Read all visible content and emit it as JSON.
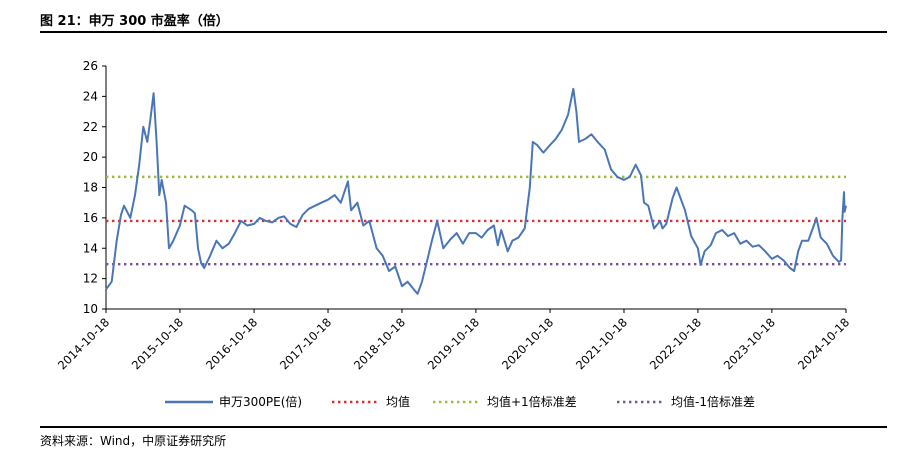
{
  "title": "图 21：申万 300 市盈率（倍）",
  "source": "资料来源：Wind，中原证券研究所",
  "chart_data": {
    "type": "line",
    "title": "图 21：申万 300 市盈率（倍）",
    "xlabel": "",
    "ylabel": "",
    "ylim": [
      10,
      26
    ],
    "yticks": [
      10,
      12,
      14,
      16,
      18,
      20,
      22,
      24,
      26
    ],
    "xlim": [
      "2014-10-18",
      "2024-10-18"
    ],
    "xticks": [
      "2014-10-18",
      "2015-10-18",
      "2016-10-18",
      "2017-10-18",
      "2018-10-18",
      "2019-10-18",
      "2020-10-18",
      "2021-10-18",
      "2022-10-18",
      "2023-10-18",
      "2024-10-18"
    ],
    "grid": false,
    "legend_position": "bottom",
    "series": [
      {
        "name": "申万300PE(倍)",
        "color": "#4a76b8",
        "style": "solid",
        "points": [
          [
            "2014-10-18",
            11.3
          ],
          [
            "2014-11-15",
            11.8
          ],
          [
            "2014-12-10",
            14.5
          ],
          [
            "2014-12-31",
            16.2
          ],
          [
            "2015-01-15",
            16.8
          ],
          [
            "2015-02-15",
            16.0
          ],
          [
            "2015-03-10",
            17.5
          ],
          [
            "2015-03-31",
            19.5
          ],
          [
            "2015-04-20",
            22.0
          ],
          [
            "2015-05-10",
            21.0
          ],
          [
            "2015-05-25",
            22.5
          ],
          [
            "2015-06-10",
            24.2
          ],
          [
            "2015-06-25",
            21.0
          ],
          [
            "2015-07-08",
            17.5
          ],
          [
            "2015-07-20",
            18.5
          ],
          [
            "2015-08-10",
            17.0
          ],
          [
            "2015-08-25",
            14.0
          ],
          [
            "2015-09-15",
            14.5
          ],
          [
            "2015-10-18",
            15.5
          ],
          [
            "2015-11-10",
            16.8
          ],
          [
            "2015-12-15",
            16.5
          ],
          [
            "2015-12-31",
            16.3
          ],
          [
            "2016-01-15",
            14.0
          ],
          [
            "2016-01-31",
            13.0
          ],
          [
            "2016-02-15",
            12.7
          ],
          [
            "2016-03-15",
            13.5
          ],
          [
            "2016-04-15",
            14.5
          ],
          [
            "2016-05-15",
            14.0
          ],
          [
            "2016-06-15",
            14.3
          ],
          [
            "2016-07-15",
            15.0
          ],
          [
            "2016-08-15",
            15.8
          ],
          [
            "2016-09-15",
            15.5
          ],
          [
            "2016-10-18",
            15.6
          ],
          [
            "2016-11-15",
            16.0
          ],
          [
            "2016-12-15",
            15.8
          ],
          [
            "2017-01-15",
            15.7
          ],
          [
            "2017-02-15",
            16.0
          ],
          [
            "2017-03-15",
            16.1
          ],
          [
            "2017-04-15",
            15.6
          ],
          [
            "2017-05-15",
            15.4
          ],
          [
            "2017-06-15",
            16.2
          ],
          [
            "2017-07-15",
            16.6
          ],
          [
            "2017-08-15",
            16.8
          ],
          [
            "2017-09-15",
            17.0
          ],
          [
            "2017-10-18",
            17.2
          ],
          [
            "2017-11-20",
            17.5
          ],
          [
            "2017-12-20",
            17.0
          ],
          [
            "2018-01-24",
            18.4
          ],
          [
            "2018-02-09",
            16.5
          ],
          [
            "2018-03-12",
            17.0
          ],
          [
            "2018-04-10",
            15.5
          ],
          [
            "2018-05-10",
            15.8
          ],
          [
            "2018-06-15",
            14.0
          ],
          [
            "2018-07-15",
            13.5
          ],
          [
            "2018-08-15",
            12.5
          ],
          [
            "2018-09-15",
            12.8
          ],
          [
            "2018-10-18",
            11.5
          ],
          [
            "2018-11-15",
            11.8
          ],
          [
            "2018-12-15",
            11.3
          ],
          [
            "2019-01-03",
            11.0
          ],
          [
            "2019-01-25",
            11.8
          ],
          [
            "2019-02-25",
            13.5
          ],
          [
            "2019-03-15",
            14.5
          ],
          [
            "2019-04-10",
            15.8
          ],
          [
            "2019-05-10",
            14.0
          ],
          [
            "2019-06-15",
            14.6
          ],
          [
            "2019-07-15",
            15.0
          ],
          [
            "2019-08-15",
            14.3
          ],
          [
            "2019-09-15",
            15.0
          ],
          [
            "2019-10-18",
            15.0
          ],
          [
            "2019-11-15",
            14.7
          ],
          [
            "2019-12-15",
            15.2
          ],
          [
            "2020-01-15",
            15.5
          ],
          [
            "2020-02-03",
            14.2
          ],
          [
            "2020-02-20",
            15.2
          ],
          [
            "2020-03-23",
            13.8
          ],
          [
            "2020-04-15",
            14.5
          ],
          [
            "2020-05-15",
            14.7
          ],
          [
            "2020-06-15",
            15.3
          ],
          [
            "2020-07-10",
            18.0
          ],
          [
            "2020-07-25",
            21.0
          ],
          [
            "2020-08-15",
            20.8
          ],
          [
            "2020-09-15",
            20.3
          ],
          [
            "2020-10-18",
            20.8
          ],
          [
            "2020-11-15",
            21.2
          ],
          [
            "2020-12-15",
            21.8
          ],
          [
            "2021-01-15",
            22.8
          ],
          [
            "2021-02-10",
            24.5
          ],
          [
            "2021-02-25",
            23.0
          ],
          [
            "2021-03-10",
            21.0
          ],
          [
            "2021-04-10",
            21.2
          ],
          [
            "2021-05-10",
            21.5
          ],
          [
            "2021-06-10",
            21.0
          ],
          [
            "2021-07-15",
            20.5
          ],
          [
            "2021-08-15",
            19.2
          ],
          [
            "2021-09-15",
            18.7
          ],
          [
            "2021-10-18",
            18.5
          ],
          [
            "2021-11-15",
            18.7
          ],
          [
            "2021-12-15",
            19.5
          ],
          [
            "2022-01-10",
            18.8
          ],
          [
            "2022-01-25",
            17.0
          ],
          [
            "2022-02-15",
            16.8
          ],
          [
            "2022-03-15",
            15.3
          ],
          [
            "2022-04-15",
            15.8
          ],
          [
            "2022-04-26",
            15.3
          ],
          [
            "2022-05-15",
            15.6
          ],
          [
            "2022-06-15",
            17.3
          ],
          [
            "2022-07-05",
            18.0
          ],
          [
            "2022-08-15",
            16.5
          ],
          [
            "2022-09-15",
            14.8
          ],
          [
            "2022-10-18",
            14.0
          ],
          [
            "2022-10-31",
            12.9
          ],
          [
            "2022-11-20",
            13.8
          ],
          [
            "2022-12-20",
            14.2
          ],
          [
            "2023-01-15",
            15.0
          ],
          [
            "2023-02-15",
            15.2
          ],
          [
            "2023-03-15",
            14.8
          ],
          [
            "2023-04-15",
            15.0
          ],
          [
            "2023-05-15",
            14.3
          ],
          [
            "2023-06-15",
            14.5
          ],
          [
            "2023-07-15",
            14.1
          ],
          [
            "2023-08-15",
            14.2
          ],
          [
            "2023-09-15",
            13.8
          ],
          [
            "2023-10-18",
            13.3
          ],
          [
            "2023-11-15",
            13.5
          ],
          [
            "2023-12-15",
            13.2
          ],
          [
            "2024-01-15",
            12.7
          ],
          [
            "2024-02-05",
            12.5
          ],
          [
            "2024-02-25",
            13.8
          ],
          [
            "2024-03-15",
            14.5
          ],
          [
            "2024-04-15",
            14.5
          ],
          [
            "2024-05-15",
            15.6
          ],
          [
            "2024-05-25",
            16.0
          ],
          [
            "2024-06-15",
            14.7
          ],
          [
            "2024-07-15",
            14.3
          ],
          [
            "2024-08-15",
            13.5
          ],
          [
            "2024-09-13",
            13.1
          ],
          [
            "2024-09-24",
            13.2
          ],
          [
            "2024-09-30",
            16.0
          ],
          [
            "2024-10-08",
            17.7
          ],
          [
            "2024-10-11",
            16.4
          ],
          [
            "2024-10-18",
            16.8
          ]
        ]
      },
      {
        "name": "均值",
        "color": "#d93030",
        "style": "dotted",
        "constant": 15.8
      },
      {
        "name": "均值+1倍标准差",
        "color": "#9bbb3c",
        "style": "dotted",
        "constant": 18.7
      },
      {
        "name": "均值-1倍标准差",
        "color": "#7a4fa0",
        "style": "dotted",
        "constant": 12.95
      }
    ]
  }
}
